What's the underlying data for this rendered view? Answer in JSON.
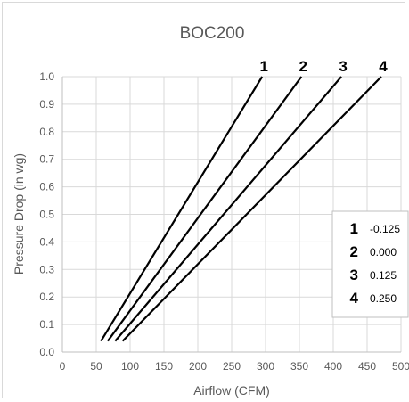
{
  "chart_data": {
    "type": "line",
    "title": "BOC200",
    "xlabel": "Airflow (CFM)",
    "ylabel": "Pressure Drop (in wg)",
    "xlim": [
      0,
      500
    ],
    "ylim": [
      0,
      1.0
    ],
    "xticks": [
      "0",
      "50",
      "100",
      "150",
      "200",
      "250",
      "300",
      "350",
      "400",
      "450",
      "500"
    ],
    "yticks": [
      "0.0",
      "0.1",
      "0.2",
      "0.3",
      "0.4",
      "0.5",
      "0.6",
      "0.7",
      "0.8",
      "0.9",
      "1.0"
    ],
    "grid": true,
    "legend_position": "right",
    "series": [
      {
        "name": "1",
        "setting": "-0.125",
        "x": [
          57,
          295
        ],
        "y": [
          0.04,
          1.0
        ]
      },
      {
        "name": "2",
        "setting": "0.000",
        "x": [
          67,
          353
        ],
        "y": [
          0.04,
          1.0
        ]
      },
      {
        "name": "3",
        "setting": "0.125",
        "x": [
          78,
          412
        ],
        "y": [
          0.04,
          1.0
        ]
      },
      {
        "name": "4",
        "setting": "0.250",
        "x": [
          89,
          471
        ],
        "y": [
          0.04,
          1.0
        ]
      }
    ],
    "colors": {
      "line": "#000000",
      "grid": "#d9d9d9",
      "text": "#595959"
    }
  }
}
